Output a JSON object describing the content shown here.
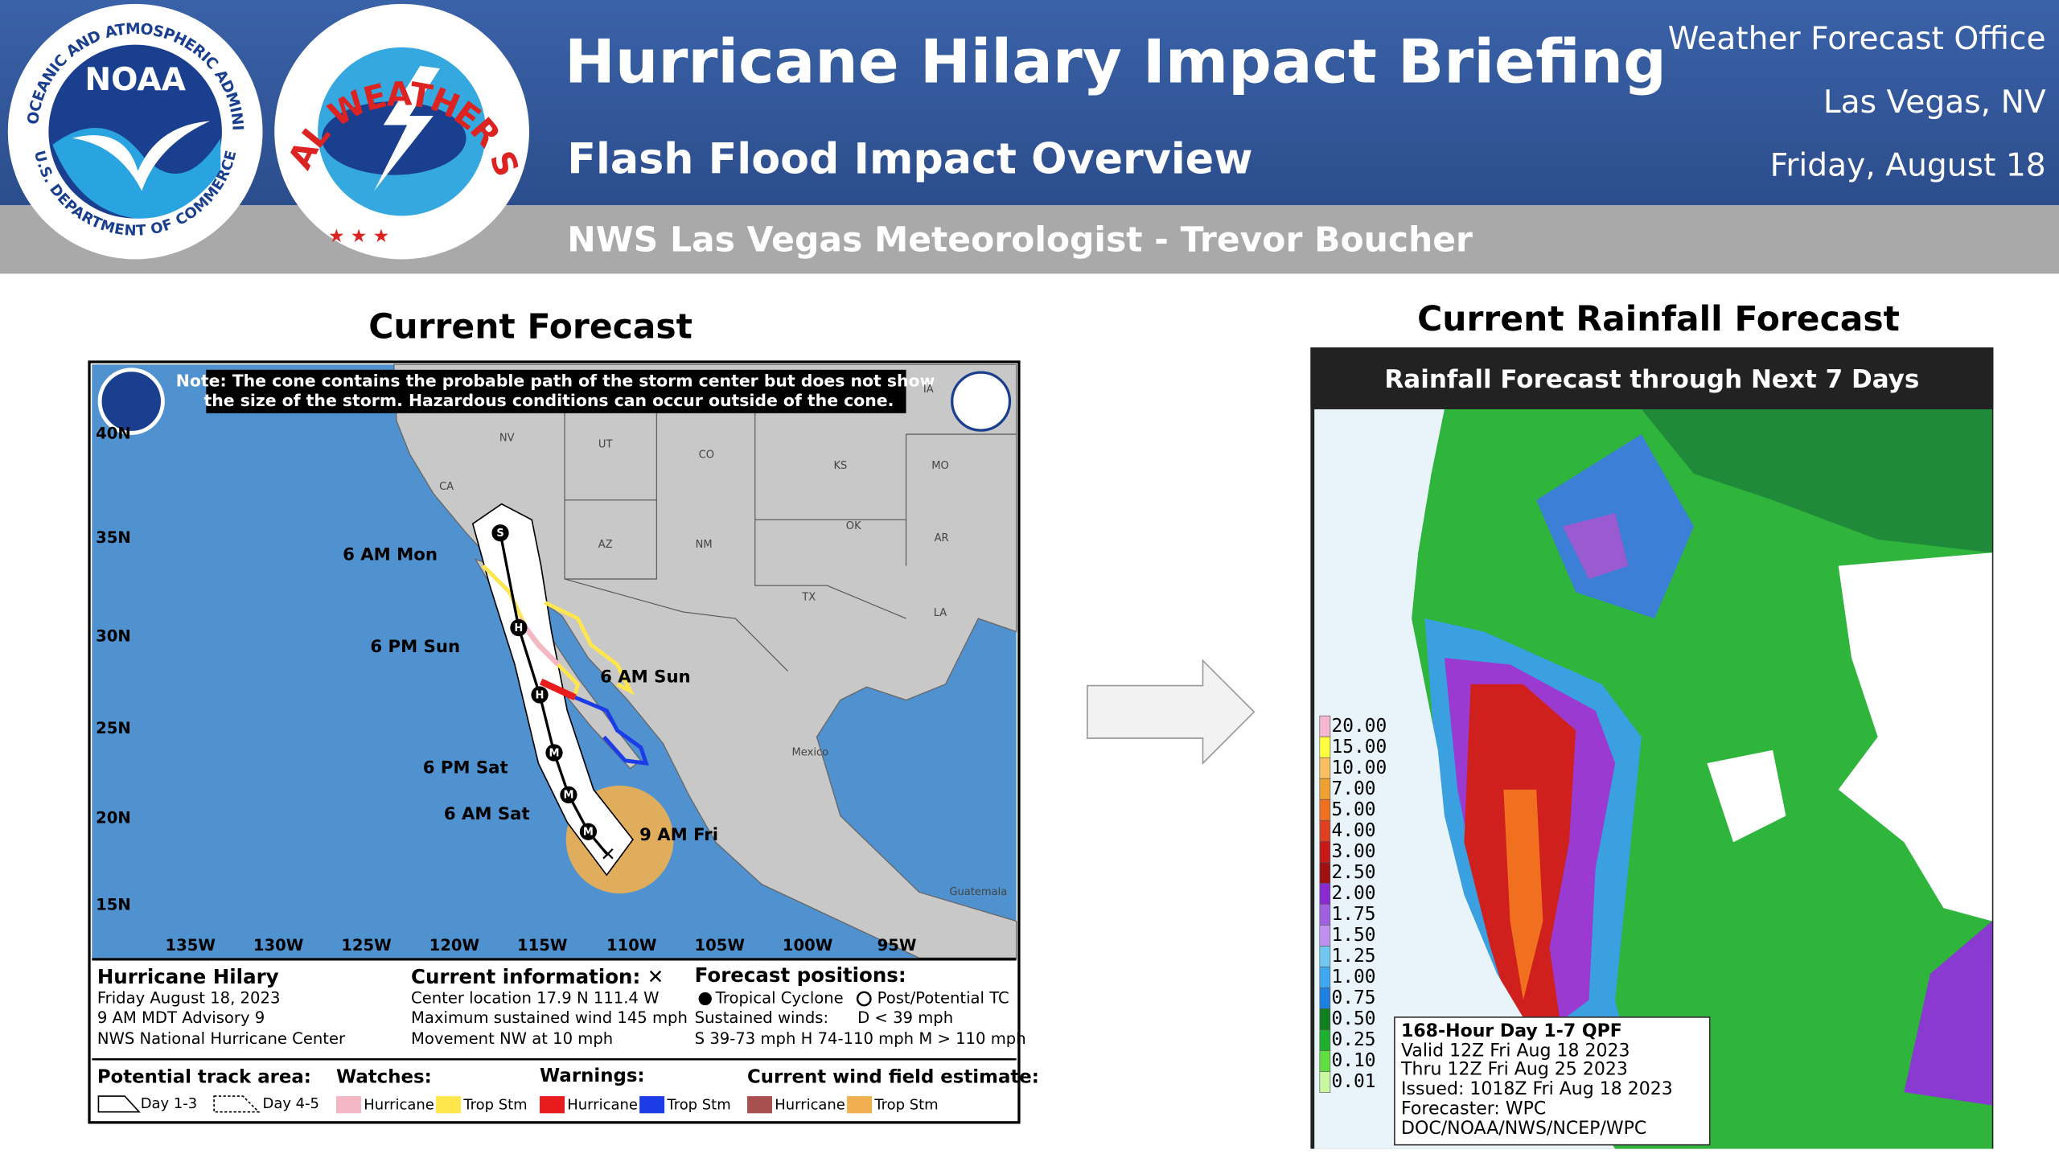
{
  "header": {
    "title": "Hurricane Hilary Impact Briefing",
    "subtitle": "Flash Flood Impact Overview",
    "presenter": "NWS Las Vegas Meteorologist - Trevor Boucher",
    "office": [
      "Weather Forecast Office",
      "Las Vegas, NV",
      "Friday, August 18"
    ],
    "noaa_logo": {
      "name": "NOAA",
      "ring": "NATIONAL OCEANIC AND ATMOSPHERIC ADMINISTRATION",
      "ring_bottom": "U.S. DEPARTMENT OF COMMERCE"
    },
    "nws_logo": {
      "ring": "NATIONAL WEATHER SERVICE"
    }
  },
  "left_panel": {
    "heading": "Current Forecast",
    "note": [
      "Note: The cone contains the probable path of the storm center but does not show",
      "the size of the storm. Hazardous conditions can occur outside of the cone."
    ],
    "latitudes": [
      "40N",
      "35N",
      "30N",
      "25N",
      "20N",
      "15N"
    ],
    "longitudes": [
      "135W",
      "130W",
      "125W",
      "120W",
      "115W",
      "110W",
      "105W",
      "100W",
      "95W"
    ],
    "regions": [
      "NV",
      "UT",
      "CO",
      "KS",
      "MO",
      "CA",
      "AZ",
      "NM",
      "OK",
      "AR",
      "TX",
      "LA",
      "IA",
      "Mexico",
      "Guatemala"
    ],
    "forecast_times": [
      "6 AM Mon",
      "6 PM Sun",
      "6 AM Sun",
      "6 PM Sat",
      "6 AM Sat",
      "9 AM Fri"
    ],
    "track_points": [
      "S",
      "H",
      "H",
      "M",
      "M",
      "M"
    ],
    "storm": [
      "Hurricane Hilary",
      "Friday August 18, 2023",
      "9 AM MDT Advisory 9",
      "NWS National Hurricane Center"
    ],
    "current_info": [
      "Current information: ✕",
      "Center location 17.9 N 111.4 W",
      "Maximum sustained wind 145 mph",
      "Movement NW at 10 mph"
    ],
    "forecast_positions": [
      "Forecast positions:",
      "Tropical Cyclone",
      "Post/Potential TC",
      "Sustained winds:",
      "D < 39 mph",
      "S 39-73 mph  H 74-110 mph  M > 110 mph"
    ],
    "legend": {
      "track_title": "Potential track area:",
      "track": [
        "Day 1-3",
        "Day 4-5"
      ],
      "watches_title": "Watches:",
      "watches": [
        "Hurricane",
        "Trop Stm"
      ],
      "warnings_title": "Warnings:",
      "warnings": [
        "Hurricane",
        "Trop Stm"
      ],
      "wind_title": "Current wind field estimate:",
      "wind": [
        "Hurricane",
        "Trop Stm"
      ]
    }
  },
  "right_panel": {
    "heading": "Current Rainfall Forecast",
    "banner": "Rainfall Forecast through Next 7 Days",
    "scale": [
      "20.00",
      "15.00",
      "10.00",
      "7.00",
      "5.00",
      "4.00",
      "3.00",
      "2.50",
      "2.00",
      "1.75",
      "1.50",
      "1.25",
      "1.00",
      "0.75",
      "0.50",
      "0.25",
      "0.10",
      "0.01"
    ],
    "product": [
      "168-Hour Day 1-7 QPF",
      "Valid 12Z Fri Aug 18 2023",
      "Thru 12Z Fri Aug 25 2023",
      "Issued: 1018Z Fri Aug 18 2023",
      "Forecaster: WPC",
      "DOC/NOAA/NWS/NCEP/WPC"
    ]
  }
}
